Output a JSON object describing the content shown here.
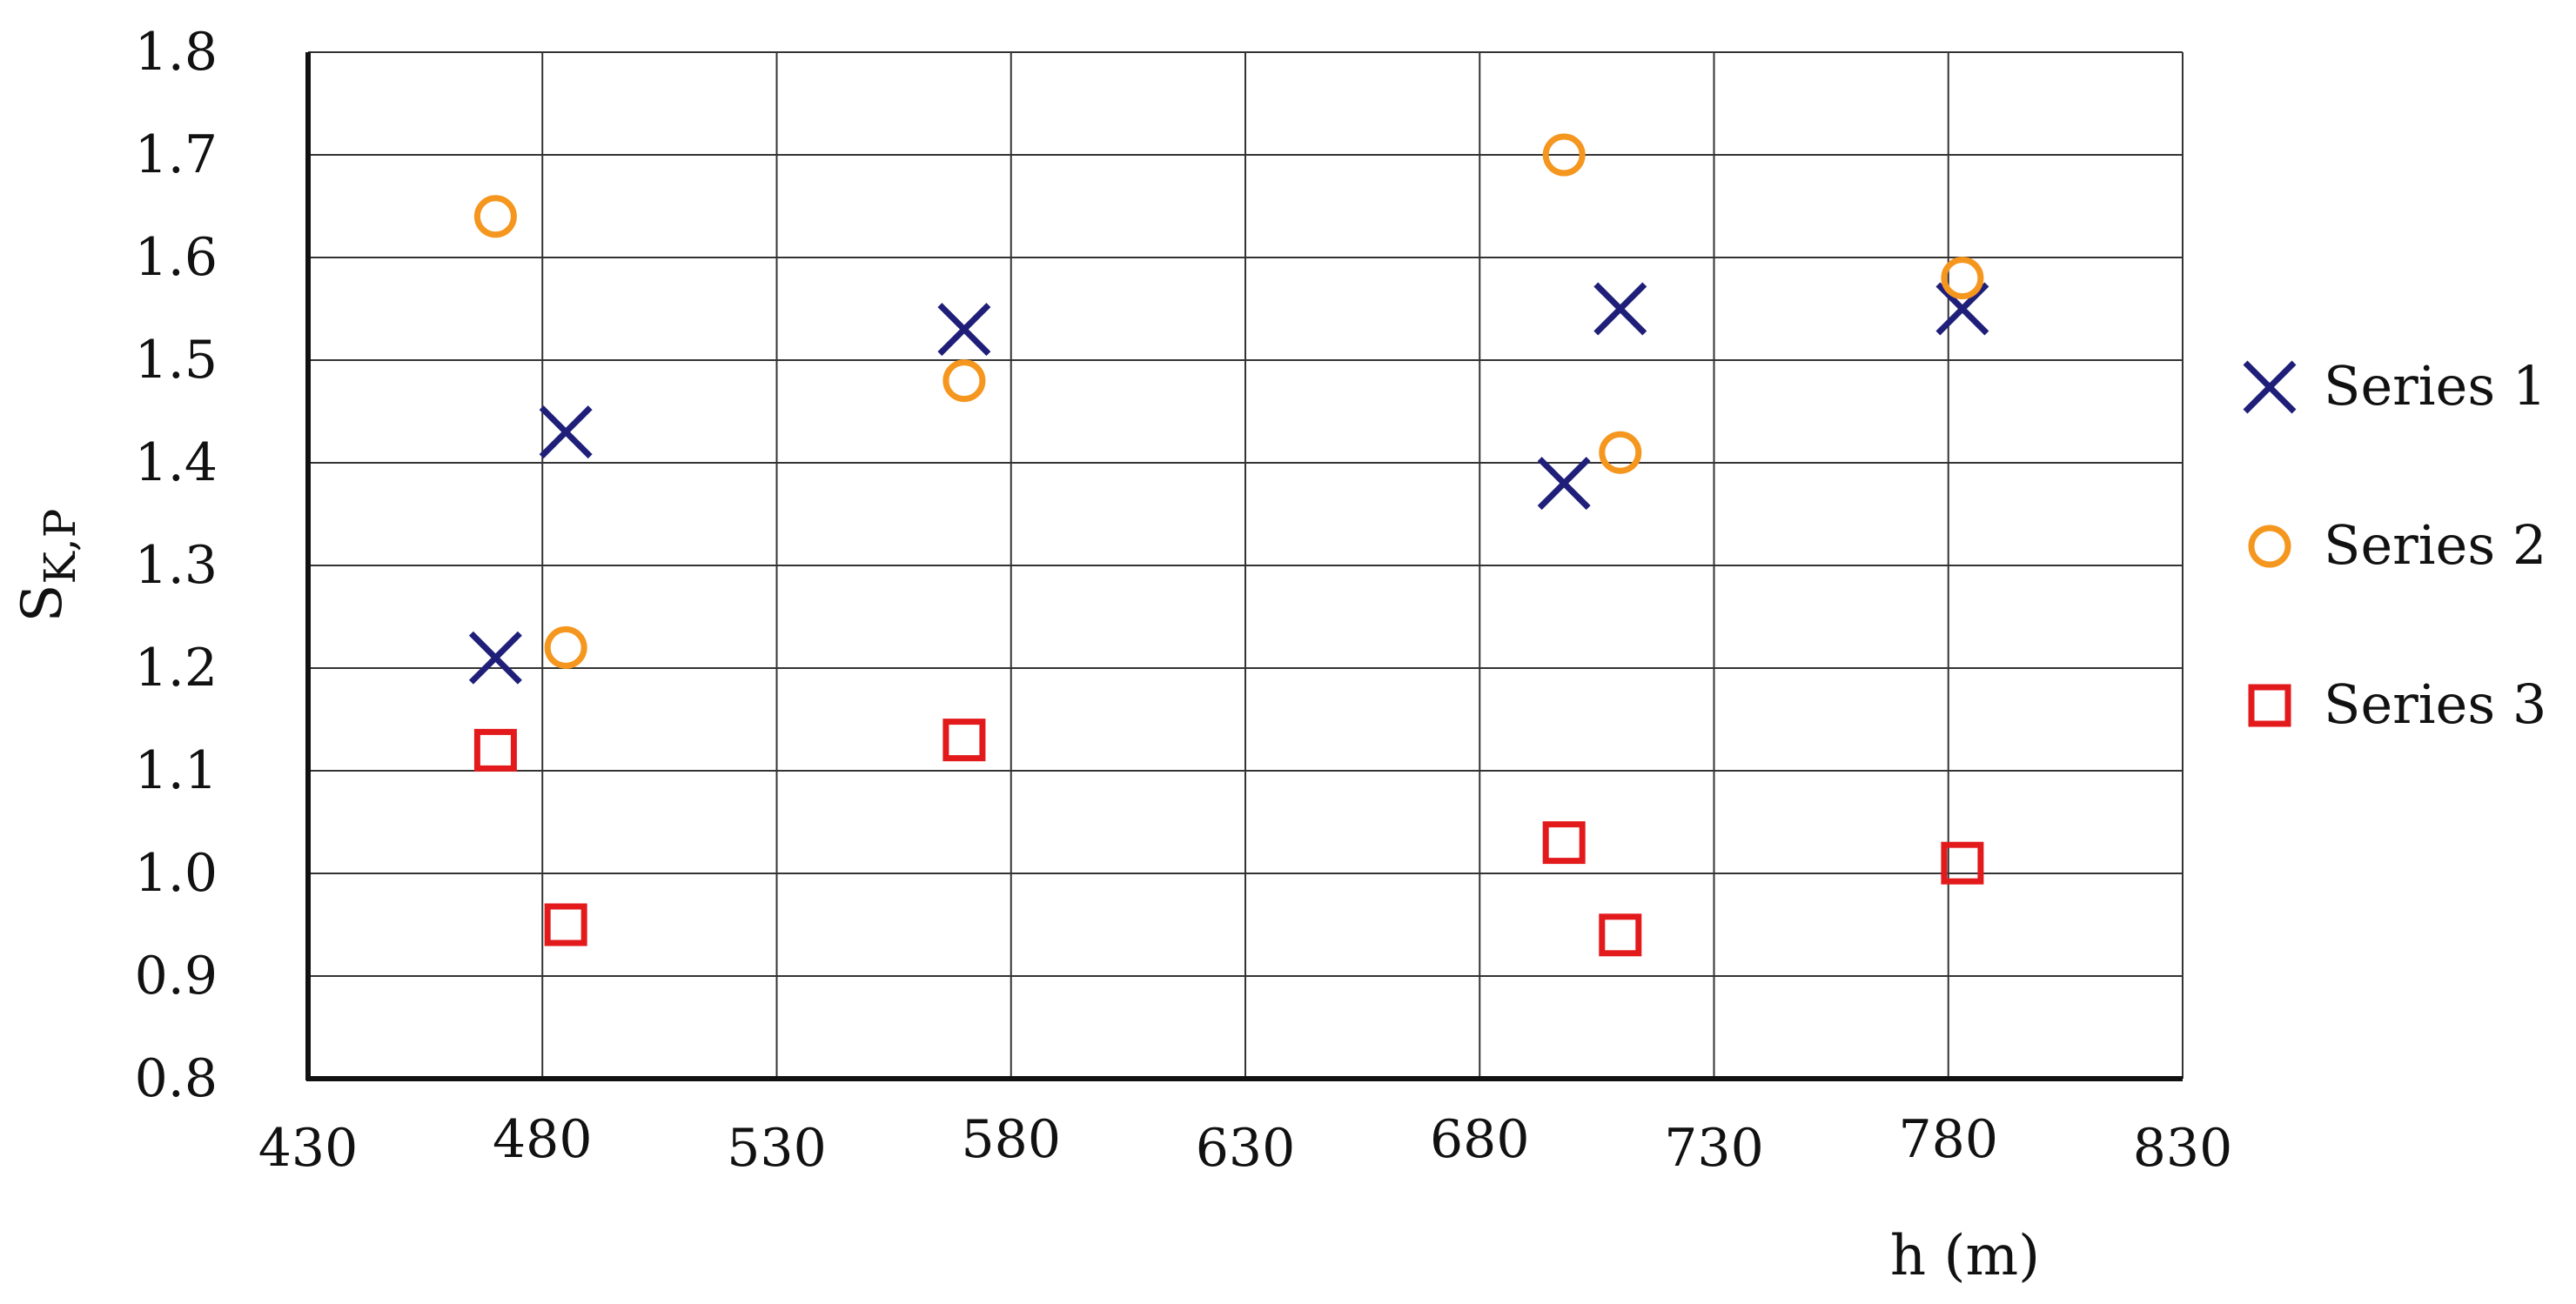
{
  "chart_data": {
    "type": "scatter",
    "xlabel": "h (m)",
    "ylabel": {
      "main": "S",
      "sub": "K,P"
    },
    "xlim": [
      430,
      830
    ],
    "ylim": [
      0.8,
      1.8
    ],
    "x_ticks": [
      "430",
      "480",
      "530",
      "580",
      "630",
      "680",
      "730",
      "780",
      "830"
    ],
    "y_ticks": [
      "0.8",
      "0.9",
      "1.0",
      "1.1",
      "1.2",
      "1.3",
      "1.4",
      "1.5",
      "1.6",
      "1.7",
      "1.8"
    ],
    "grid": true,
    "legend_position": "right",
    "series": [
      {
        "name": "Series 1",
        "marker": "x",
        "color": "#1f1f7a",
        "points": [
          [
            470,
            1.21
          ],
          [
            485,
            1.43
          ],
          [
            570,
            1.53
          ],
          [
            698,
            1.38
          ],
          [
            710,
            1.55
          ],
          [
            783,
            1.55
          ]
        ]
      },
      {
        "name": "Series 2",
        "marker": "circle",
        "color": "#f5961e",
        "points": [
          [
            470,
            1.64
          ],
          [
            485,
            1.22
          ],
          [
            570,
            1.48
          ],
          [
            698,
            1.7
          ],
          [
            710,
            1.41
          ],
          [
            783,
            1.58
          ]
        ]
      },
      {
        "name": "Series 3",
        "marker": "square",
        "color": "#e31a1c",
        "points": [
          [
            470,
            1.12
          ],
          [
            485,
            0.95
          ],
          [
            570,
            1.13
          ],
          [
            698,
            1.03
          ],
          [
            710,
            0.94
          ],
          [
            783,
            1.01
          ]
        ]
      }
    ]
  }
}
